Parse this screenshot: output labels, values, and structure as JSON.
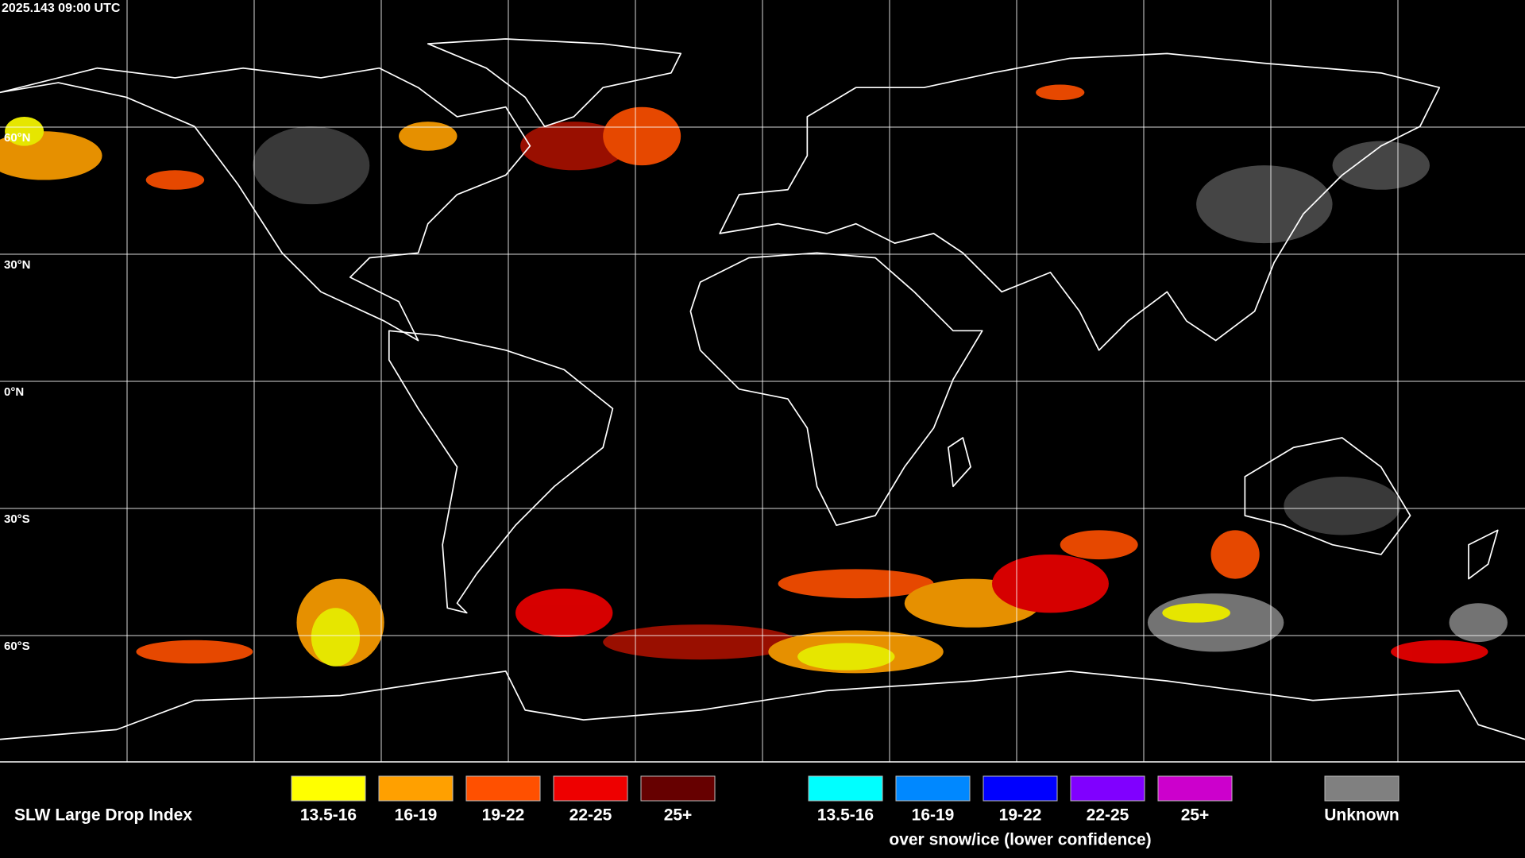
{
  "header": {
    "timestamp": "2025.143 09:00 UTC"
  },
  "map": {
    "latitude_labels": [
      "60°N",
      "30°N",
      "0°N",
      "30°S",
      "60°S"
    ]
  },
  "legend": {
    "title": "SLW Large Drop Index",
    "groups": [
      {
        "items": [
          {
            "label": "13.5-16",
            "color": "#ffff00"
          },
          {
            "label": "16-19",
            "color": "#ffa000"
          },
          {
            "label": "19-22",
            "color": "#ff5000"
          },
          {
            "label": "22-25",
            "color": "#ee0000"
          },
          {
            "label": "25+",
            "color": "#660000"
          }
        ]
      },
      {
        "items": [
          {
            "label": "13.5-16",
            "color": "#00ffff"
          },
          {
            "label": "16-19",
            "color": "#0088ff"
          },
          {
            "label": "19-22",
            "color": "#0000ff"
          },
          {
            "label": "22-25",
            "color": "#8000ff"
          },
          {
            "label": "25+",
            "color": "#cc00cc"
          }
        ],
        "note": "over snow/ice (lower confidence)"
      },
      {
        "items": [
          {
            "label": "Unknown",
            "color": "#808080"
          }
        ]
      }
    ]
  }
}
